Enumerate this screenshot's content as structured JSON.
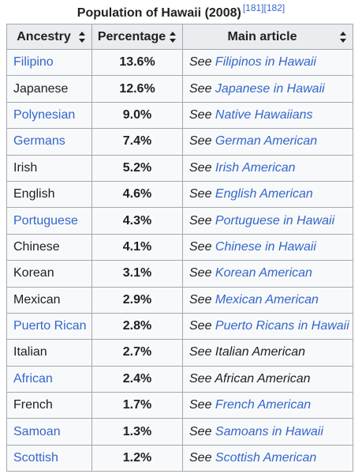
{
  "caption": {
    "title": "Population of Hawaii (2008)",
    "refs": [
      "[181]",
      "[182]"
    ]
  },
  "table": {
    "headers": [
      "Ancestry",
      "Percentage",
      "Main article"
    ],
    "see_prefix": "See ",
    "rows": [
      {
        "ancestry": "Filipino",
        "ancestry_link": true,
        "percentage": "13.6%",
        "article": "Filipinos in Hawaii",
        "article_link": true
      },
      {
        "ancestry": "Japanese",
        "ancestry_link": false,
        "percentage": "12.6%",
        "article": "Japanese in Hawaii",
        "article_link": true
      },
      {
        "ancestry": "Polynesian",
        "ancestry_link": true,
        "percentage": "9.0%",
        "article": "Native Hawaiians",
        "article_link": true
      },
      {
        "ancestry": "Germans",
        "ancestry_link": true,
        "percentage": "7.4%",
        "article": "German American",
        "article_link": true
      },
      {
        "ancestry": "Irish",
        "ancestry_link": false,
        "percentage": "5.2%",
        "article": "Irish American",
        "article_link": true
      },
      {
        "ancestry": "English",
        "ancestry_link": false,
        "percentage": "4.6%",
        "article": "English American",
        "article_link": true
      },
      {
        "ancestry": "Portuguese",
        "ancestry_link": true,
        "percentage": "4.3%",
        "article": "Portuguese in Hawaii",
        "article_link": true
      },
      {
        "ancestry": "Chinese",
        "ancestry_link": false,
        "percentage": "4.1%",
        "article": "Chinese in Hawaii",
        "article_link": true
      },
      {
        "ancestry": "Korean",
        "ancestry_link": false,
        "percentage": "3.1%",
        "article": "Korean American",
        "article_link": true
      },
      {
        "ancestry": "Mexican",
        "ancestry_link": false,
        "percentage": "2.9%",
        "article": "Mexican American",
        "article_link": true
      },
      {
        "ancestry": "Puerto Rican",
        "ancestry_link": true,
        "percentage": "2.8%",
        "article": "Puerto Ricans in Hawaii",
        "article_link": true
      },
      {
        "ancestry": "Italian",
        "ancestry_link": false,
        "percentage": "2.7%",
        "article": "Italian American",
        "article_link": false
      },
      {
        "ancestry": "African",
        "ancestry_link": true,
        "percentage": "2.4%",
        "article": "African American",
        "article_link": false
      },
      {
        "ancestry": "French",
        "ancestry_link": false,
        "percentage": "1.7%",
        "article": "French American",
        "article_link": true
      },
      {
        "ancestry": "Samoan",
        "ancestry_link": true,
        "percentage": "1.3%",
        "article": "Samoans in Hawaii",
        "article_link": true
      },
      {
        "ancestry": "Scottish",
        "ancestry_link": true,
        "percentage": "1.2%",
        "article": "Scottish American",
        "article_link": true
      }
    ]
  },
  "colors": {
    "link": "#3366cc",
    "text": "#202122",
    "header_bg": "#eaecf0",
    "cell_bg": "#f8f9fa",
    "border": "#a2a9b1"
  },
  "icons": {
    "sort": "sort-both-icon"
  }
}
